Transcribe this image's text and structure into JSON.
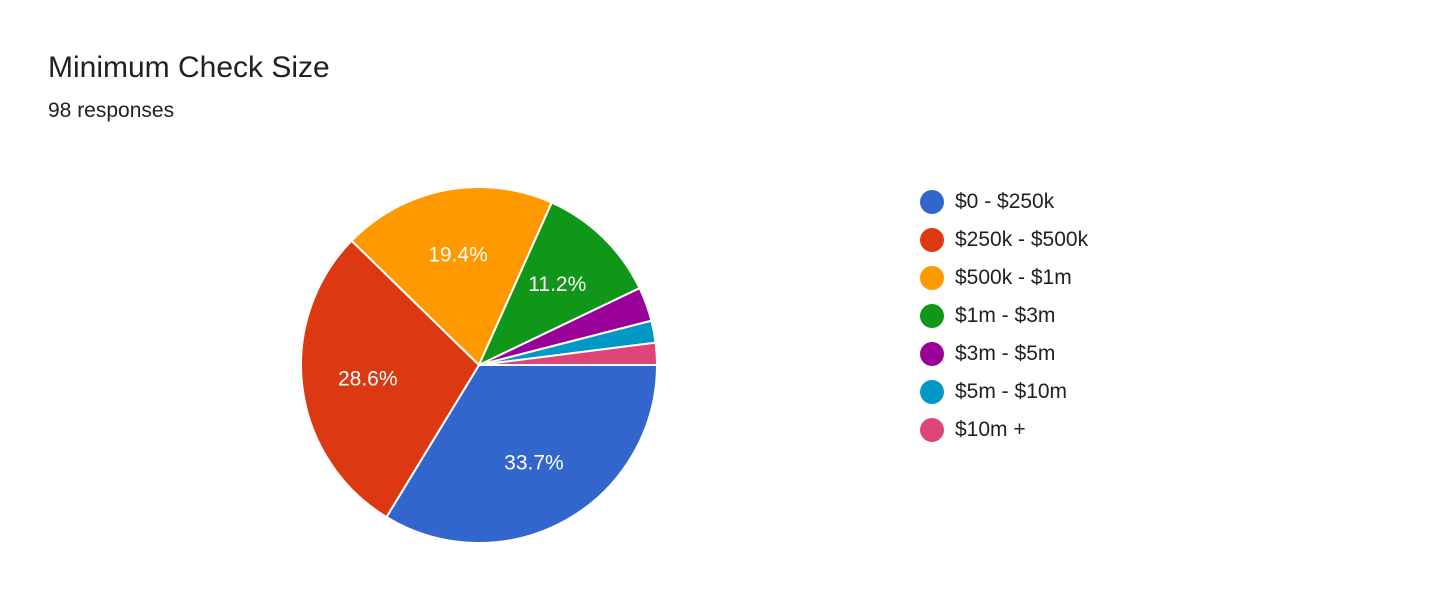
{
  "chart_data": {
    "type": "pie",
    "title": "Minimum Check Size",
    "subtitle": "98 responses",
    "legend_position": "right",
    "slices": [
      {
        "label": "$0 - $250k",
        "value": 33.7,
        "color": "#3366cc",
        "display": "33.7%"
      },
      {
        "label": "$250k - $500k",
        "value": 28.6,
        "color": "#dc3912",
        "display": "28.6%"
      },
      {
        "label": "$500k - $1m",
        "value": 19.4,
        "color": "#ff9900",
        "display": "19.4%"
      },
      {
        "label": "$1m - $3m",
        "value": 11.2,
        "color": "#109618",
        "display": "11.2%"
      },
      {
        "label": "$3m - $5m",
        "value": 3.1,
        "color": "#990099",
        "display": ""
      },
      {
        "label": "$5m - $10m",
        "value": 2.0,
        "color": "#0099c6",
        "display": ""
      },
      {
        "label": "$10m +",
        "value": 2.0,
        "color": "#dd4477",
        "display": ""
      }
    ]
  }
}
